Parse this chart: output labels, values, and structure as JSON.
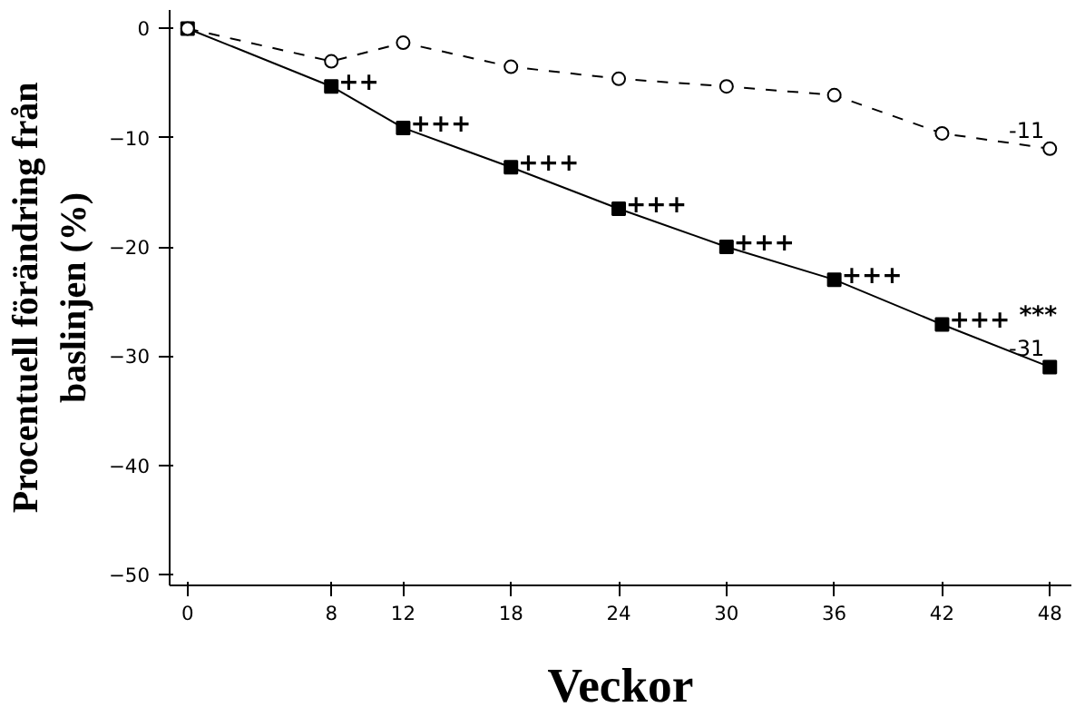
{
  "chart_data": {
    "type": "line",
    "xlabel": "Veckor",
    "ylabel": "Procentuell förändring från baslinjen (%)",
    "x": [
      0,
      8,
      12,
      18,
      24,
      30,
      36,
      42,
      48
    ],
    "series": [
      {
        "color": "#000000",
        "marker": "square",
        "line_style": "solid",
        "values": [
          0,
          -5.3,
          -9.1,
          -12.7,
          -16.5,
          -20,
          -23,
          -27.1,
          -31
        ],
        "value_labels": [
          null,
          null,
          null,
          null,
          null,
          null,
          null,
          null,
          "-31"
        ]
      },
      {
        "color": "#000000",
        "marker": "circle",
        "line_style": "dashed",
        "values": [
          0,
          -3,
          -1.3,
          -3.5,
          -4.6,
          -5.3,
          -6.1,
          -9.6,
          -11
        ],
        "value_labels": [
          null,
          null,
          null,
          null,
          null,
          null,
          null,
          null,
          "-11"
        ]
      }
    ],
    "annotations": [
      {
        "text": "++",
        "x": 8,
        "y": -5.3
      },
      {
        "text": "+++",
        "x": 12,
        "y": -9.1
      },
      {
        "text": "+++",
        "x": 18,
        "y": -12.7
      },
      {
        "text": "+++",
        "x": 24,
        "y": -16.5
      },
      {
        "text": "+++",
        "x": 30,
        "y": -20
      },
      {
        "text": "+++",
        "x": 36,
        "y": -23
      },
      {
        "text": "+++",
        "x": 42,
        "y": -27.1
      },
      {
        "text": "***",
        "x": 48,
        "y": -31
      }
    ],
    "xlim": [
      -1,
      49.2
    ],
    "ylim": [
      -51,
      1.7
    ],
    "xticks": [
      0,
      8,
      12,
      18,
      24,
      30,
      36,
      42,
      48
    ],
    "yticks": [
      0,
      -10,
      -20,
      -30,
      -40,
      -50
    ],
    "grid": false
  }
}
